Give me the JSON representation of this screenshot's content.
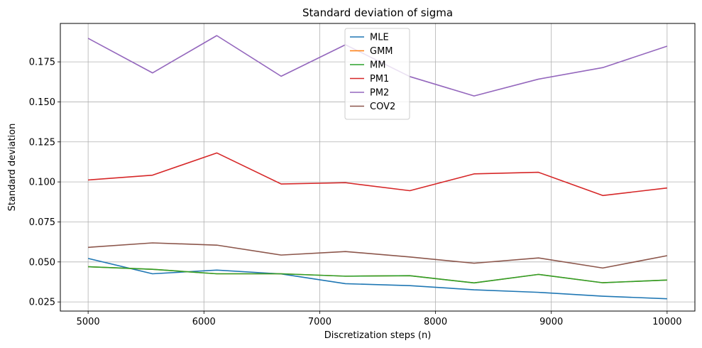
{
  "chart_data": {
    "type": "line",
    "title": "Standard deviation of sigma",
    "xlabel": "Discretization steps (n)",
    "ylabel": "Standard deviation",
    "x": [
      5000,
      5556,
      6111,
      6667,
      7222,
      7778,
      8333,
      8889,
      9444,
      10000
    ],
    "xlim": [
      4760,
      10240
    ],
    "ylim": [
      0.0193,
      0.199
    ],
    "xticks": [
      5000,
      6000,
      7000,
      8000,
      9000,
      10000
    ],
    "yticks": [
      0.025,
      0.05,
      0.075,
      0.1,
      0.125,
      0.15,
      0.175
    ],
    "xtick_labels": [
      "5000",
      "6000",
      "7000",
      "8000",
      "9000",
      "10000"
    ],
    "ytick_labels": [
      "0.025",
      "0.050",
      "0.075",
      "0.100",
      "0.125",
      "0.150",
      "0.175"
    ],
    "grid": true,
    "legend_position": "top-center",
    "series": [
      {
        "name": "MLE",
        "color": "#1f77b4",
        "values": [
          0.0522,
          0.0426,
          0.0449,
          0.0425,
          0.0364,
          0.0352,
          0.0326,
          0.031,
          0.0286,
          0.027
        ]
      },
      {
        "name": "GMM",
        "color": "#ff7f0e",
        "values": [
          0.047,
          0.0454,
          0.0426,
          0.0426,
          0.0411,
          0.0414,
          0.0369,
          0.0422,
          0.037,
          0.0387
        ]
      },
      {
        "name": "MM",
        "color": "#2ca02c",
        "values": [
          0.047,
          0.0454,
          0.0426,
          0.0426,
          0.0411,
          0.0414,
          0.0369,
          0.0422,
          0.037,
          0.0387
        ]
      },
      {
        "name": "PM1",
        "color": "#d62728",
        "values": [
          0.1012,
          0.1042,
          0.1181,
          0.0987,
          0.0995,
          0.0945,
          0.105,
          0.106,
          0.0915,
          0.0962
        ]
      },
      {
        "name": "PM2",
        "color": "#9467bd",
        "values": [
          0.1897,
          0.1681,
          0.1914,
          0.166,
          0.1857,
          0.1658,
          0.1537,
          0.1642,
          0.1714,
          0.1848
        ]
      },
      {
        "name": "COV2",
        "color": "#8c564b",
        "values": [
          0.0591,
          0.0619,
          0.0605,
          0.0543,
          0.0565,
          0.0531,
          0.0492,
          0.0525,
          0.0462,
          0.0539
        ]
      }
    ]
  }
}
